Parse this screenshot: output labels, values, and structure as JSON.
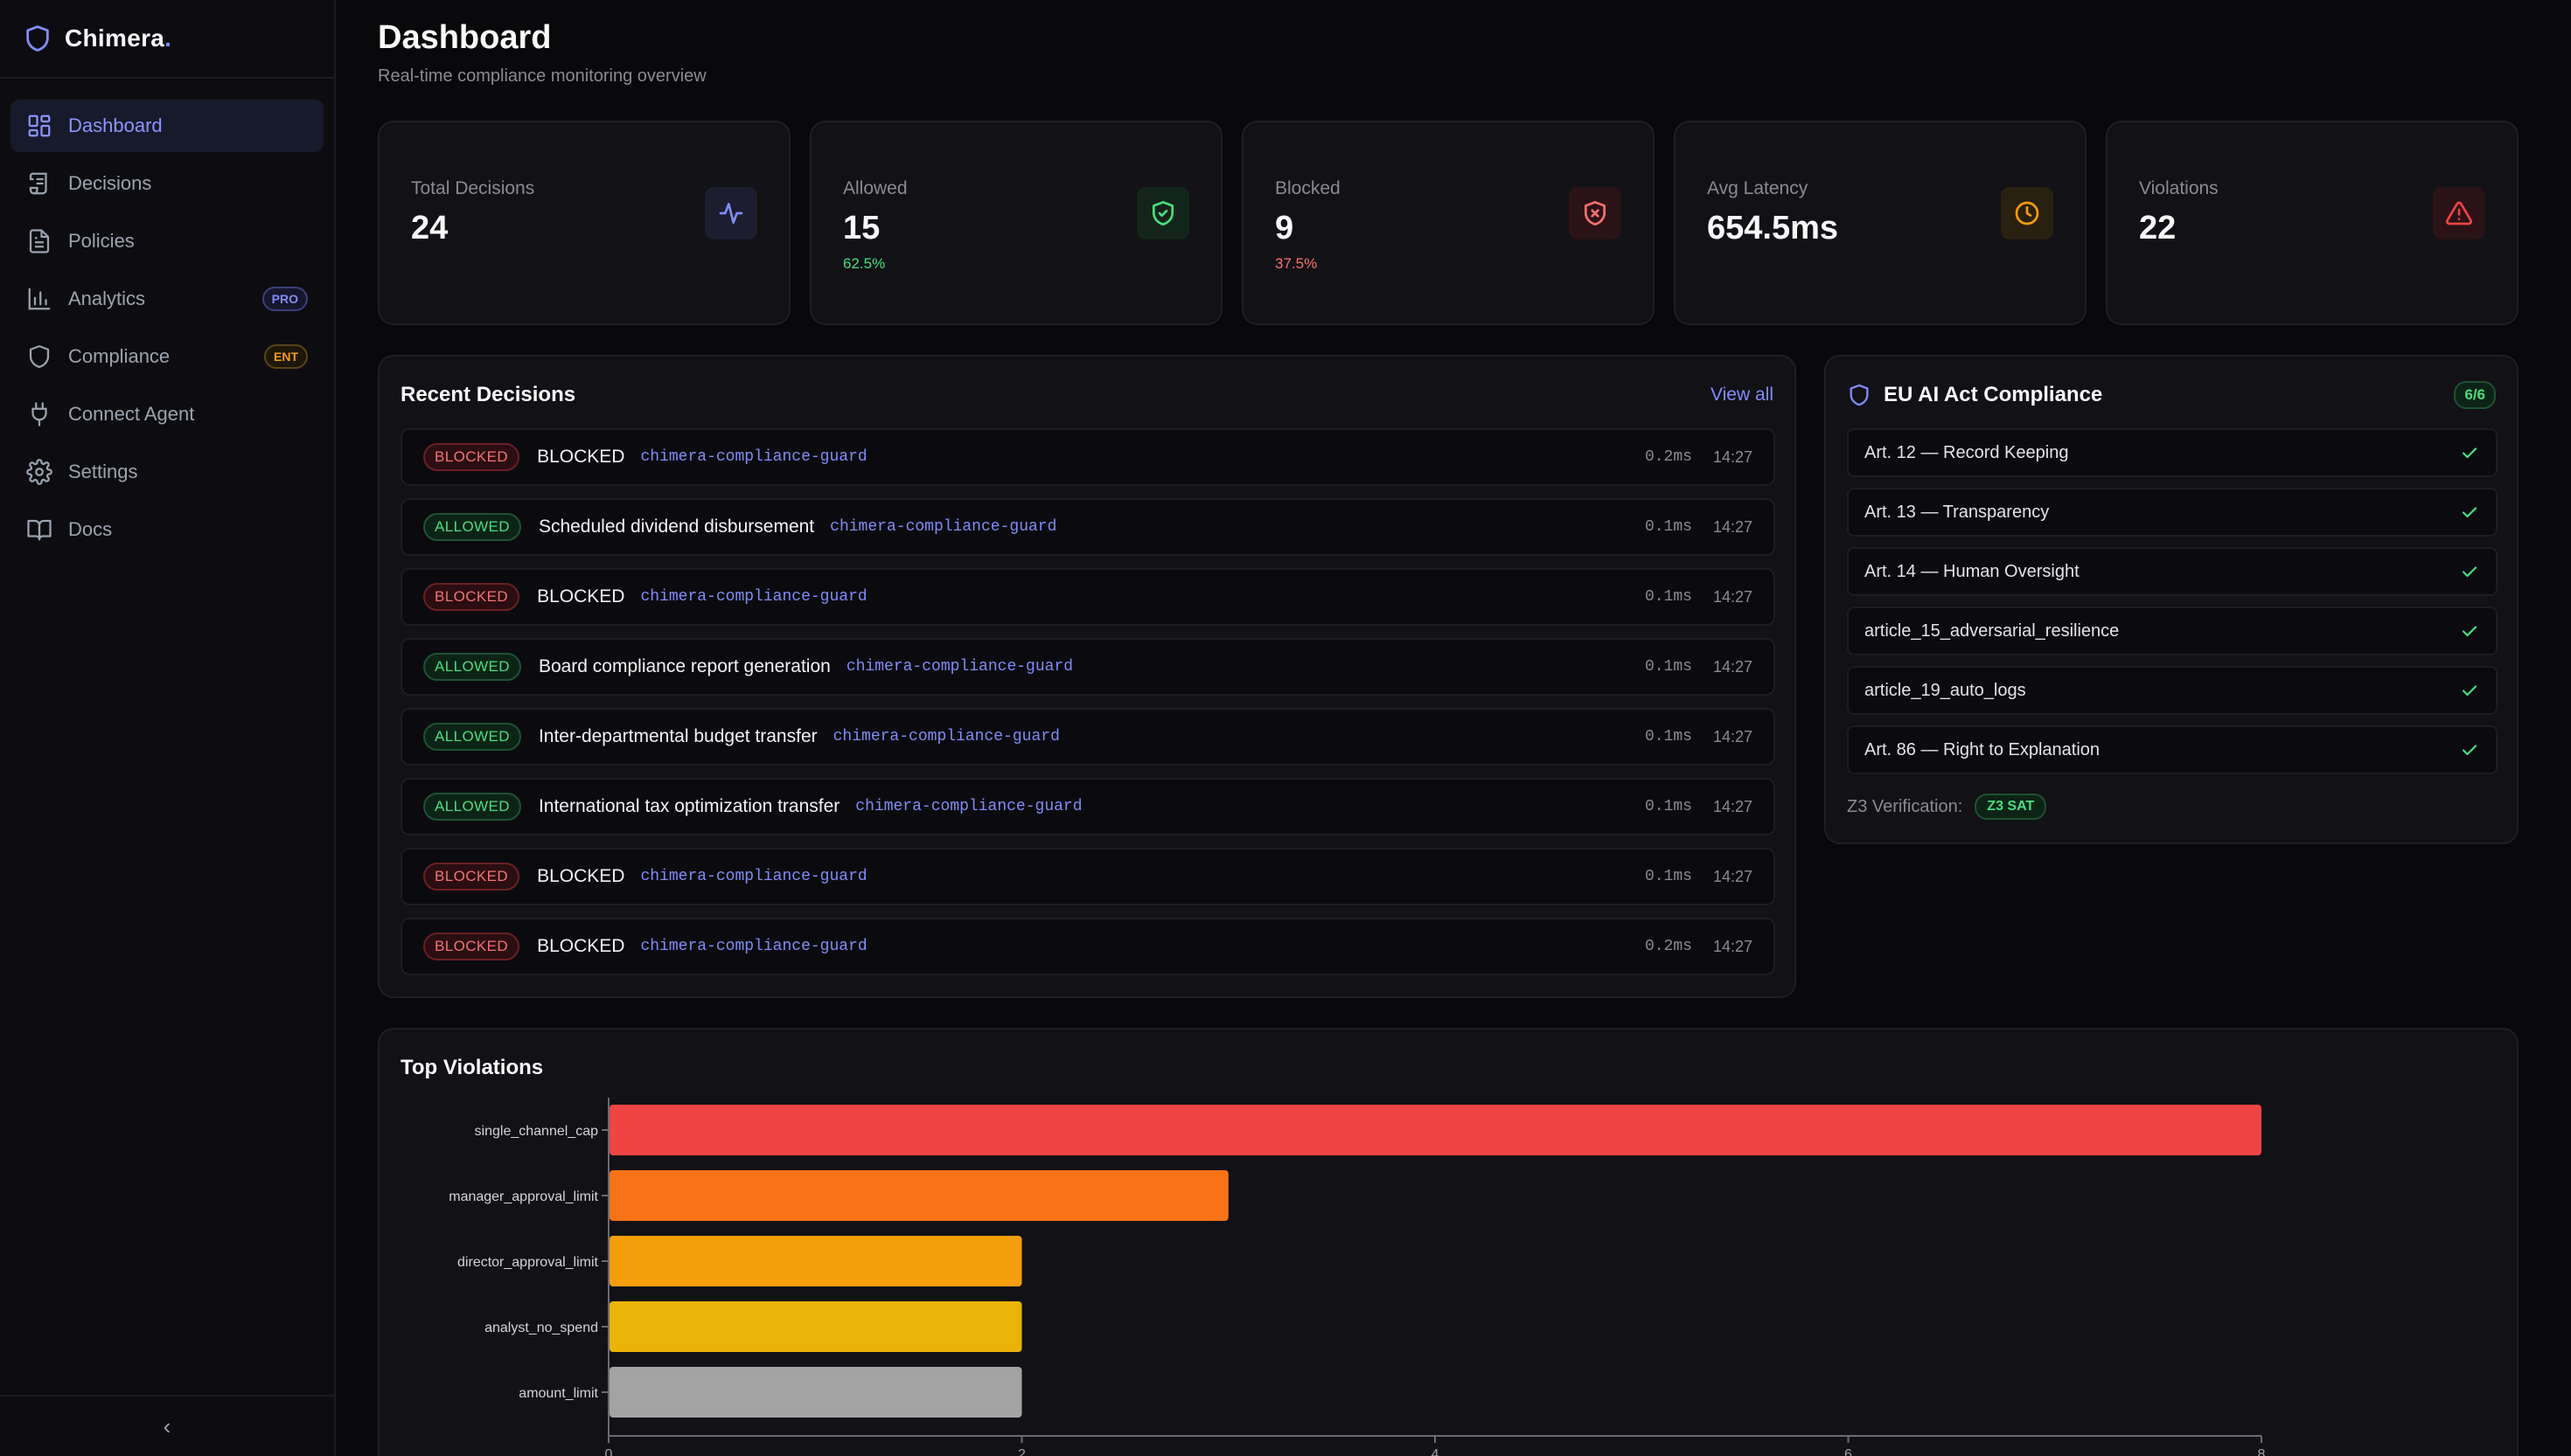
{
  "brand": {
    "name": "Chimera",
    "dot": "."
  },
  "sidebar": {
    "items": [
      {
        "label": "Dashboard",
        "icon": "dashboard-grid-icon",
        "active": true
      },
      {
        "label": "Decisions",
        "icon": "scroll-icon"
      },
      {
        "label": "Policies",
        "icon": "file-text-icon"
      },
      {
        "label": "Analytics",
        "icon": "bar-chart-icon",
        "badge": "PRO"
      },
      {
        "label": "Compliance",
        "icon": "shield-icon",
        "badge": "ENT"
      },
      {
        "label": "Connect Agent",
        "icon": "plug-icon"
      },
      {
        "label": "Settings",
        "icon": "gear-icon"
      },
      {
        "label": "Docs",
        "icon": "book-icon"
      }
    ],
    "collapse": "‹"
  },
  "header": {
    "title": "Dashboard",
    "subtitle": "Real-time compliance monitoring overview"
  },
  "stats": [
    {
      "label": "Total Decisions",
      "value": "24",
      "icon": "activity-icon"
    },
    {
      "label": "Allowed",
      "value": "15",
      "pct": "62.5%",
      "icon": "shield-check-icon"
    },
    {
      "label": "Blocked",
      "value": "9",
      "pct": "37.5%",
      "icon": "shield-x-icon"
    },
    {
      "label": "Avg Latency",
      "value": "654.5ms",
      "icon": "clock-icon"
    },
    {
      "label": "Violations",
      "value": "22",
      "icon": "alert-triangle-icon"
    }
  ],
  "recent": {
    "title": "Recent Decisions",
    "view_all": "View all",
    "rows": [
      {
        "status": "BLOCKED",
        "name": "BLOCKED",
        "agent": "chimera-compliance-guard",
        "latency": "0.2ms",
        "time": "14:27"
      },
      {
        "status": "ALLOWED",
        "name": "Scheduled dividend disbursement",
        "agent": "chimera-compliance-guard",
        "latency": "0.1ms",
        "time": "14:27"
      },
      {
        "status": "BLOCKED",
        "name": "BLOCKED",
        "agent": "chimera-compliance-guard",
        "latency": "0.1ms",
        "time": "14:27"
      },
      {
        "status": "ALLOWED",
        "name": "Board compliance report generation",
        "agent": "chimera-compliance-guard",
        "latency": "0.1ms",
        "time": "14:27"
      },
      {
        "status": "ALLOWED",
        "name": "Inter-departmental budget transfer",
        "agent": "chimera-compliance-guard",
        "latency": "0.1ms",
        "time": "14:27"
      },
      {
        "status": "ALLOWED",
        "name": "International tax optimization transfer",
        "agent": "chimera-compliance-guard",
        "latency": "0.1ms",
        "time": "14:27"
      },
      {
        "status": "BLOCKED",
        "name": "BLOCKED",
        "agent": "chimera-compliance-guard",
        "latency": "0.1ms",
        "time": "14:27"
      },
      {
        "status": "BLOCKED",
        "name": "BLOCKED",
        "agent": "chimera-compliance-guard",
        "latency": "0.2ms",
        "time": "14:27"
      }
    ]
  },
  "eu": {
    "title": "EU AI Act Compliance",
    "count": "6/6",
    "items": [
      "Art. 12 — Record Keeping",
      "Art. 13 — Transparency",
      "Art. 14 — Human Oversight",
      "article_15_adversarial_resilience",
      "article_19_auto_logs",
      "Art. 86 — Right to Explanation"
    ],
    "z3_label": "Z3 Verification:",
    "z3_status": "Z3 SAT"
  },
  "violations_title": "Top Violations",
  "colors": {
    "accent": "#818cf8",
    "allowed": "#4ade80",
    "blocked": "#f87171",
    "warning": "#f59e0b"
  },
  "chart_data": {
    "type": "bar",
    "orientation": "horizontal",
    "title": "Top Violations",
    "categories": [
      "single_channel_cap",
      "manager_approval_limit",
      "director_approval_limit",
      "analyst_no_spend",
      "amount_limit"
    ],
    "values": [
      8,
      3,
      2,
      2,
      2
    ],
    "colors": [
      "#ef4444",
      "#f97316",
      "#f59e0b",
      "#eab308",
      "#a3a3a3"
    ],
    "xlim": [
      0,
      8
    ],
    "xticks": [
      0,
      2,
      4,
      6,
      8
    ],
    "grid": false
  }
}
